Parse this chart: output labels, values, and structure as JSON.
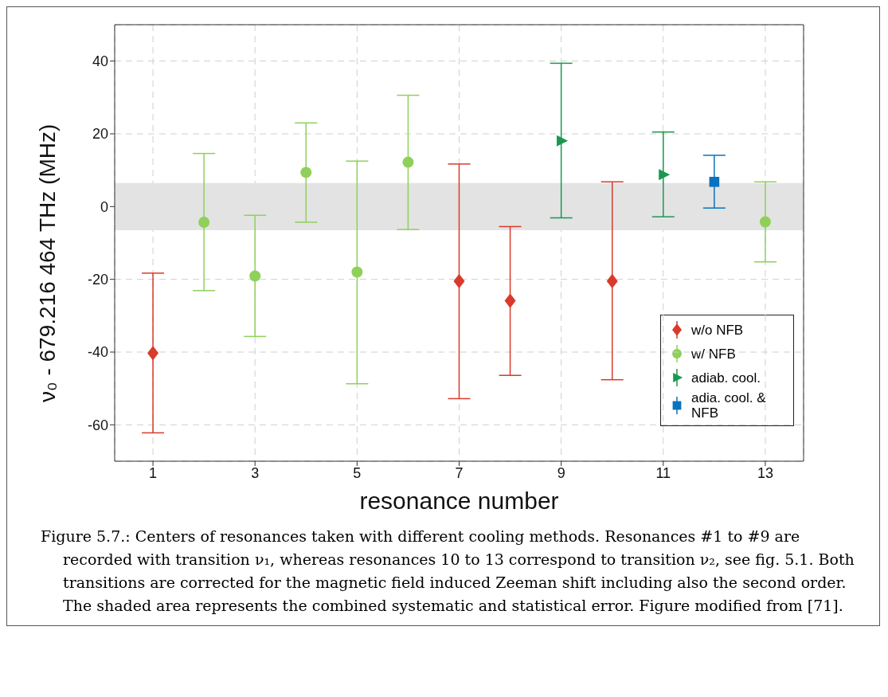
{
  "chart_data": {
    "type": "scatter",
    "xlabel": "resonance number",
    "ylabel": "ν₀ - 679.216 464 THz (MHz)",
    "xlim": [
      0.25,
      13.75
    ],
    "xticks": [
      1,
      3,
      5,
      7,
      9,
      11,
      13
    ],
    "ylim": [
      -70,
      50
    ],
    "yticks": [
      -60,
      -40,
      -20,
      0,
      20,
      40
    ],
    "grid": true,
    "legend": "bottom right",
    "series": [
      {
        "name": "w/o NFB",
        "color": "#d93a2b",
        "marker": "diamond",
        "x": [
          1,
          7,
          8,
          10
        ],
        "values": [
          -40.3,
          -20.5,
          -25.9,
          -20.5
        ],
        "errors": [
          [
            -62.2,
            -18.3
          ],
          [
            -52.8,
            11.7
          ],
          [
            -46.4,
            -5.5
          ],
          [
            -47.6,
            6.8
          ]
        ]
      },
      {
        "name": "w/ NFB",
        "color": "#8fd05a",
        "marker": "circle",
        "x": [
          2,
          3,
          4,
          5,
          6,
          13
        ],
        "values": [
          -4.3,
          -19.1,
          9.4,
          -18.0,
          12.2,
          -4.2
        ],
        "errors": [
          [
            -23.1,
            14.6
          ],
          [
            -35.7,
            -2.4
          ],
          [
            -4.3,
            23.0
          ],
          [
            -48.7,
            12.5
          ],
          [
            -6.3,
            30.6
          ],
          [
            -15.2,
            6.8
          ]
        ]
      },
      {
        "name": "adiab. cool.",
        "color": "#1a9850",
        "marker": "triangle",
        "x": [
          9,
          11
        ],
        "values": [
          18.1,
          8.8
        ],
        "errors": [
          [
            -3.1,
            39.4
          ],
          [
            -2.8,
            20.5
          ]
        ]
      },
      {
        "name": "adia. cool. & NFB",
        "color": "#0a72bf",
        "marker": "square",
        "x": [
          12
        ],
        "values": [
          6.8
        ],
        "errors": [
          [
            -0.4,
            14.1
          ]
        ]
      }
    ],
    "bands": [
      {
        "axis": "y",
        "from": -6.5,
        "to": 6.5,
        "color": "#e3e3e3"
      }
    ],
    "annotations": [
      "Figure 5.7.: Centers of resonances taken with different cooling methods. Resonances #1 to #9 are recorded with transition ν₁, whereas resonances 10 to 13 correspond to transition ν₂, see fig. 5.1. Both transitions are corrected for the magnetic field induced Zeeman shift including also the second order. The shaded area represents the combined systematic and statistical error. Figure modified from [71]."
    ]
  }
}
